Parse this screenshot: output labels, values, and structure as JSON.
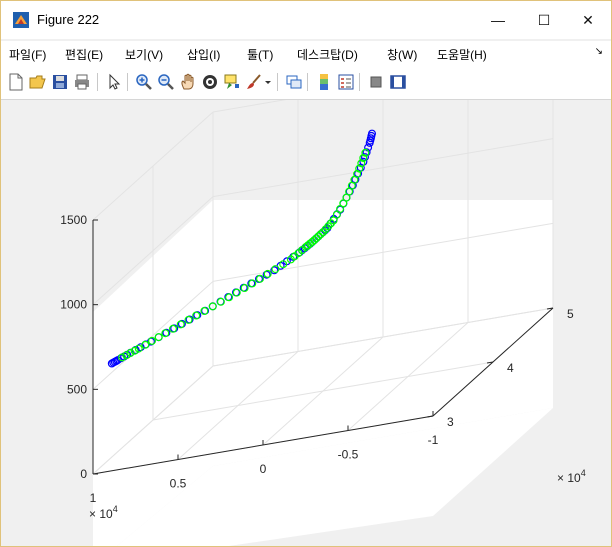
{
  "window": {
    "title": "Figure 222",
    "controls": {
      "minimize": "—",
      "maximize": "☐",
      "close": "✕"
    }
  },
  "menu": {
    "items": [
      {
        "label": "파일(F)"
      },
      {
        "label": "편집(E)"
      },
      {
        "label": "보기(V)"
      },
      {
        "label": "삽입(I)"
      },
      {
        "label": "툴(T)"
      },
      {
        "label": "데스크탑(D)"
      },
      {
        "label": "창(W)"
      },
      {
        "label": "도움말(H)"
      }
    ],
    "dock_arrow": "↘"
  },
  "toolbar": {
    "icons": [
      "new-figure-icon",
      "open-file-icon",
      "save-icon",
      "print-icon",
      "pointer-icon",
      "zoom-in-icon",
      "zoom-out-icon",
      "pan-icon",
      "rotate-3d-icon",
      "data-cursor-icon",
      "brush-icon",
      "brush-dropdown-icon",
      "link-plot-icon",
      "colorbar-icon",
      "legend-icon",
      "hide-plot-tools-icon",
      "show-plot-tools-icon"
    ]
  },
  "chart_data": {
    "type": "scatter",
    "title": "",
    "x_axis": {
      "ticks": [
        "1",
        "0.5",
        "0",
        "-0.5",
        "-1"
      ],
      "exponent_label": "× 10",
      "exponent": "4",
      "range": [
        -10000,
        10000
      ]
    },
    "y_axis": {
      "ticks": [
        "3",
        "4",
        "5"
      ],
      "exponent_label": "× 10",
      "exponent": "4",
      "range": [
        30000,
        50000
      ]
    },
    "z_axis": {
      "ticks": [
        "0",
        "500",
        "1000",
        "1500"
      ],
      "range": [
        0,
        1500
      ]
    },
    "grid": true,
    "series": [
      {
        "marker": "o",
        "color": "#0000ff",
        "points": [
          [
            -2600,
            40800,
            1450
          ],
          [
            -2500,
            40700,
            1400
          ],
          [
            -2200,
            40500,
            1300
          ],
          [
            -1700,
            40150,
            1180
          ],
          [
            -1100,
            39750,
            1060
          ],
          [
            -500,
            39300,
            975
          ],
          [
            -100,
            38950,
            945
          ],
          [
            300,
            38700,
            915
          ],
          [
            800,
            38350,
            885
          ],
          [
            2000,
            37550,
            825
          ],
          [
            3500,
            36700,
            775
          ],
          [
            5000,
            35800,
            720
          ],
          [
            6500,
            34900,
            670
          ],
          [
            8000,
            34000,
            620
          ],
          [
            9000,
            33400,
            590
          ],
          [
            9600,
            33000,
            570
          ],
          [
            9900,
            32850,
            560
          ]
        ]
      },
      {
        "marker": "o",
        "color": "#00ff00",
        "points": [
          [
            -2300,
            40550,
            1350
          ],
          [
            -1900,
            40300,
            1240
          ],
          [
            -1400,
            39950,
            1120
          ],
          [
            -800,
            39500,
            1010
          ],
          [
            -300,
            39150,
            960
          ],
          [
            100,
            38850,
            930
          ],
          [
            500,
            38550,
            905
          ],
          [
            1200,
            38050,
            860
          ],
          [
            2700,
            37150,
            800
          ],
          [
            4200,
            36250,
            745
          ],
          [
            5800,
            35300,
            695
          ],
          [
            7300,
            34400,
            645
          ],
          [
            8600,
            33650,
            600
          ],
          [
            9400,
            33150,
            578
          ]
        ]
      }
    ]
  },
  "colors": {
    "title_bar": "#ffffff",
    "figure_bg": "#f0f0f0",
    "axes_bg": "#ffffff",
    "accent": "#e0c27a"
  }
}
